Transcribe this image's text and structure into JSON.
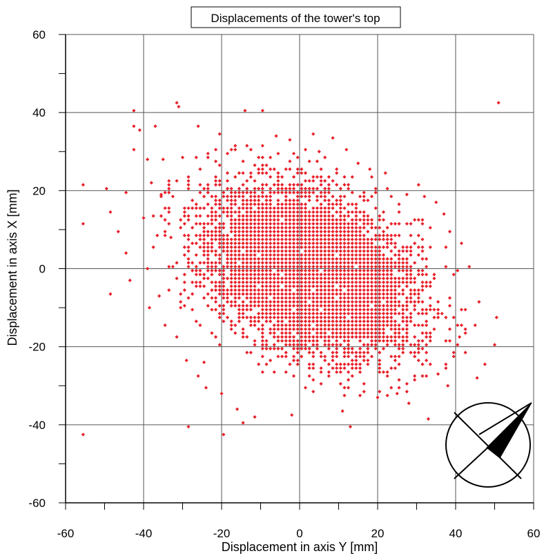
{
  "chart_data": {
    "type": "scatter",
    "title": "Displacements of the tower's top",
    "xlabel": "Displacement in axis Y [mm]",
    "ylabel": "Displacement in axis X [mm]",
    "xlim": [
      -60,
      60
    ],
    "ylim": [
      -60,
      60
    ],
    "xticks": [
      "-60",
      "-40",
      "-20",
      "0",
      "20",
      "40",
      "60"
    ],
    "yticks": [
      "60",
      "40",
      "20",
      "0",
      "-20",
      "-40",
      "-60"
    ],
    "x_tick_values": [
      -60,
      -40,
      -20,
      0,
      20,
      40,
      60
    ],
    "y_tick_values": [
      60,
      40,
      20,
      0,
      -20,
      -40,
      -60
    ],
    "minor_tick_step": 10,
    "grid": true,
    "marker": "diamond",
    "point_color": "#e8202a",
    "cloud": {
      "center": [
        0,
        0
      ],
      "x_range": [
        -20,
        25
      ],
      "y_range": [
        -25,
        25
      ],
      "grid_spacing": 1,
      "correlation": "negative"
    },
    "outliers": [
      [
        51,
        42.5
      ],
      [
        -31.5,
        42.5
      ],
      [
        -31,
        41.5
      ],
      [
        -42.5,
        40.5
      ],
      [
        -14,
        40.5
      ],
      [
        -55.5,
        21.5
      ],
      [
        -55.5,
        11.5
      ],
      [
        -49.5,
        20.5
      ],
      [
        -48.5,
        14.5
      ],
      [
        -44.5,
        19.5
      ],
      [
        -46.5,
        9.5
      ],
      [
        -44.5,
        4
      ],
      [
        -43.5,
        -3
      ],
      [
        -48.5,
        -6.5
      ],
      [
        -42.5,
        36.5
      ],
      [
        -42.5,
        30.5
      ],
      [
        -41,
        35.5
      ],
      [
        -39,
        28
      ],
      [
        -37,
        36.5
      ],
      [
        -55.5,
        -42.5
      ],
      [
        -28.5,
        -40.5
      ],
      [
        -19.5,
        -42.5
      ],
      [
        -14.5,
        -39.5
      ],
      [
        -11.5,
        -38
      ],
      [
        -16,
        -36
      ],
      [
        -29,
        -23.5
      ],
      [
        -31.5,
        -17.5
      ],
      [
        -34.5,
        -14.5
      ],
      [
        50.5,
        -12.5
      ],
      [
        50,
        -19.5
      ],
      [
        47.5,
        -24.5
      ],
      [
        45,
        -14.5
      ],
      [
        43.5,
        0.5
      ],
      [
        46,
        -8.5
      ],
      [
        41,
        -17.5
      ],
      [
        41.5,
        6.5
      ],
      [
        38.5,
        9.5
      ],
      [
        37,
        14
      ],
      [
        33,
        -38.5
      ],
      [
        28,
        -34.5
      ],
      [
        22,
        24.5
      ],
      [
        18,
        25.5
      ],
      [
        15,
        27
      ],
      [
        8.5,
        33.5
      ],
      [
        3.5,
        34.5
      ],
      [
        -9.5,
        40.5
      ],
      [
        -20.5,
        34.5
      ],
      [
        -26,
        36.5
      ],
      [
        -30,
        28.5
      ],
      [
        -35,
        28
      ],
      [
        -38,
        22
      ],
      [
        -40,
        13
      ],
      [
        -39,
        0
      ],
      [
        -38.5,
        -10
      ],
      [
        -36,
        -7
      ],
      [
        -26,
        -27.5
      ],
      [
        -24,
        -30.5
      ],
      [
        -20,
        -32
      ],
      [
        -2,
        -37.5
      ],
      [
        13,
        -40.5
      ],
      [
        11,
        -36.5
      ],
      [
        20,
        -33
      ],
      [
        25,
        -32
      ],
      [
        35.5,
        -27
      ],
      [
        38,
        -30
      ],
      [
        45.5,
        -28
      ],
      [
        42.5,
        -21.5
      ],
      [
        30.5,
        21.5
      ],
      [
        27.5,
        19
      ],
      [
        32,
        18.5
      ],
      [
        35,
        17
      ],
      [
        12,
        30.5
      ],
      [
        -2.5,
        33
      ],
      [
        -6,
        34
      ],
      [
        5,
        30
      ],
      [
        -24.5,
        -24
      ],
      [
        -30.5,
        -10
      ],
      [
        -33,
        8
      ],
      [
        -35.5,
        19
      ]
    ]
  },
  "inset": {
    "label": "",
    "icon": "wind-rose-compass-icon"
  }
}
